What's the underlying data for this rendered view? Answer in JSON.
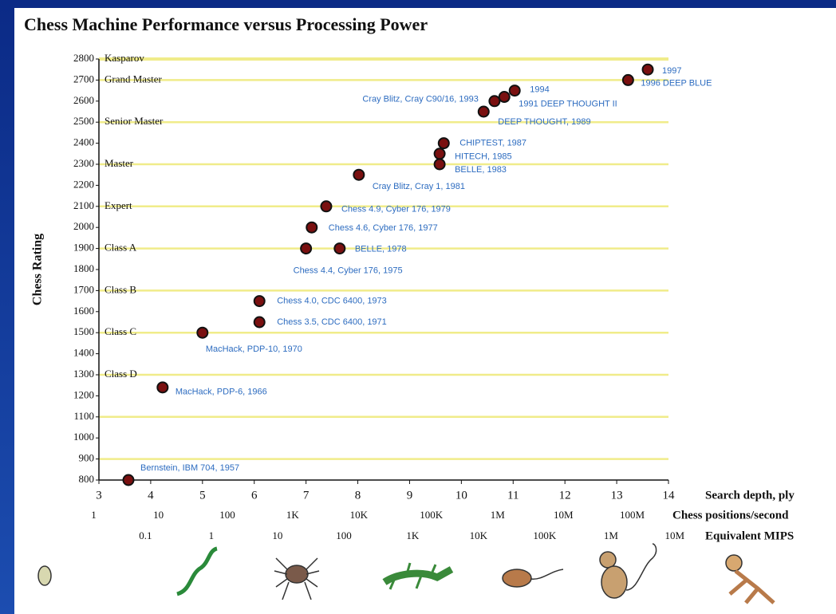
{
  "chart_data": {
    "type": "scatter",
    "title": "Chess Machine Performance versus Processing Power",
    "ylabel": "Chess Rating",
    "xlabel": "Search depth, ply",
    "x2label": "Chess positions/second",
    "x3label": "Equivalent MIPS",
    "xlim": [
      3,
      14
    ],
    "ylim": [
      800,
      2800
    ],
    "xticks": [
      3,
      4,
      5,
      6,
      7,
      8,
      9,
      10,
      11,
      12,
      13,
      14
    ],
    "yticks": [
      800,
      900,
      1000,
      1100,
      1200,
      1300,
      1400,
      1500,
      1600,
      1700,
      1800,
      1900,
      2000,
      2100,
      2200,
      2300,
      2400,
      2500,
      2600,
      2700,
      2800
    ],
    "x2ticks": [
      {
        "value": 2.9,
        "label": "1"
      },
      {
        "value": 4.15,
        "label": "10"
      },
      {
        "value": 5.48,
        "label": "100"
      },
      {
        "value": 6.74,
        "label": "1K"
      },
      {
        "value": 8.02,
        "label": "10K"
      },
      {
        "value": 9.42,
        "label": "100K"
      },
      {
        "value": 10.7,
        "label": "1M"
      },
      {
        "value": 11.97,
        "label": "10M"
      },
      {
        "value": 13.3,
        "label": "100M"
      }
    ],
    "x3ticks": [
      {
        "value": 3.9,
        "label": "0.1"
      },
      {
        "value": 5.17,
        "label": "1"
      },
      {
        "value": 6.45,
        "label": "10"
      },
      {
        "value": 7.73,
        "label": "100"
      },
      {
        "value": 9.06,
        "label": "1K"
      },
      {
        "value": 10.33,
        "label": "10K"
      },
      {
        "value": 11.61,
        "label": "100K"
      },
      {
        "value": 12.89,
        "label": "1M"
      },
      {
        "value": 14.12,
        "label": "10M"
      }
    ],
    "levels": [
      {
        "value": 2800,
        "label": "Kasparov"
      },
      {
        "value": 2700,
        "label": "Grand Master"
      },
      {
        "value": 2500,
        "label": "Senior Master"
      },
      {
        "value": 2300,
        "label": "Master"
      },
      {
        "value": 2100,
        "label": "Expert"
      },
      {
        "value": 1900,
        "label": "Class A"
      },
      {
        "value": 1700,
        "label": "Class B"
      },
      {
        "value": 1500,
        "label": "Class C"
      },
      {
        "value": 1300,
        "label": "Class D"
      },
      {
        "value": 1100,
        "label": null
      },
      {
        "value": 900,
        "label": null
      }
    ],
    "level_color": "#f0ec8a",
    "point_color": "#7a1010",
    "label_color": "#2d6cc0",
    "x": [
      3.57,
      4.23,
      5.0,
      6.1,
      6.1,
      7.0,
      7.65,
      7.11,
      7.39,
      8.02,
      9.58,
      9.58,
      9.66,
      10.43,
      10.64,
      10.83,
      11.03,
      13.22,
      13.6
    ],
    "values": [
      800,
      1240,
      1500,
      1650,
      1550,
      1900,
      1900,
      2000,
      2100,
      2250,
      2300,
      2350,
      2400,
      2550,
      2600,
      2620,
      2650,
      2700,
      2750
    ],
    "point_labels": [
      "Bernstein, IBM 704, 1957",
      "MacHack, PDP-6, 1966",
      "MacHack, PDP-10, 1970",
      "Chess 4.0, CDC 6400, 1973",
      "Chess 3.5, CDC 6400, 1971",
      "Chess 4.4, Cyber 176, 1975",
      "BELLE, 1978",
      "Chess 4.6, Cyber 176, 1977",
      "Chess 4.9, Cyber 176, 1979",
      "Cray Blitz, Cray 1, 1981",
      "BELLE, 1983",
      "HITECH, 1985",
      "CHIPTEST, 1987",
      "DEEP THOUGHT, 1989",
      "Cray Blitz, Cray C90/16, 1993",
      "1991  DEEP THOUGHT II",
      "1994",
      "1996  DEEP BLUE",
      "1997"
    ]
  }
}
